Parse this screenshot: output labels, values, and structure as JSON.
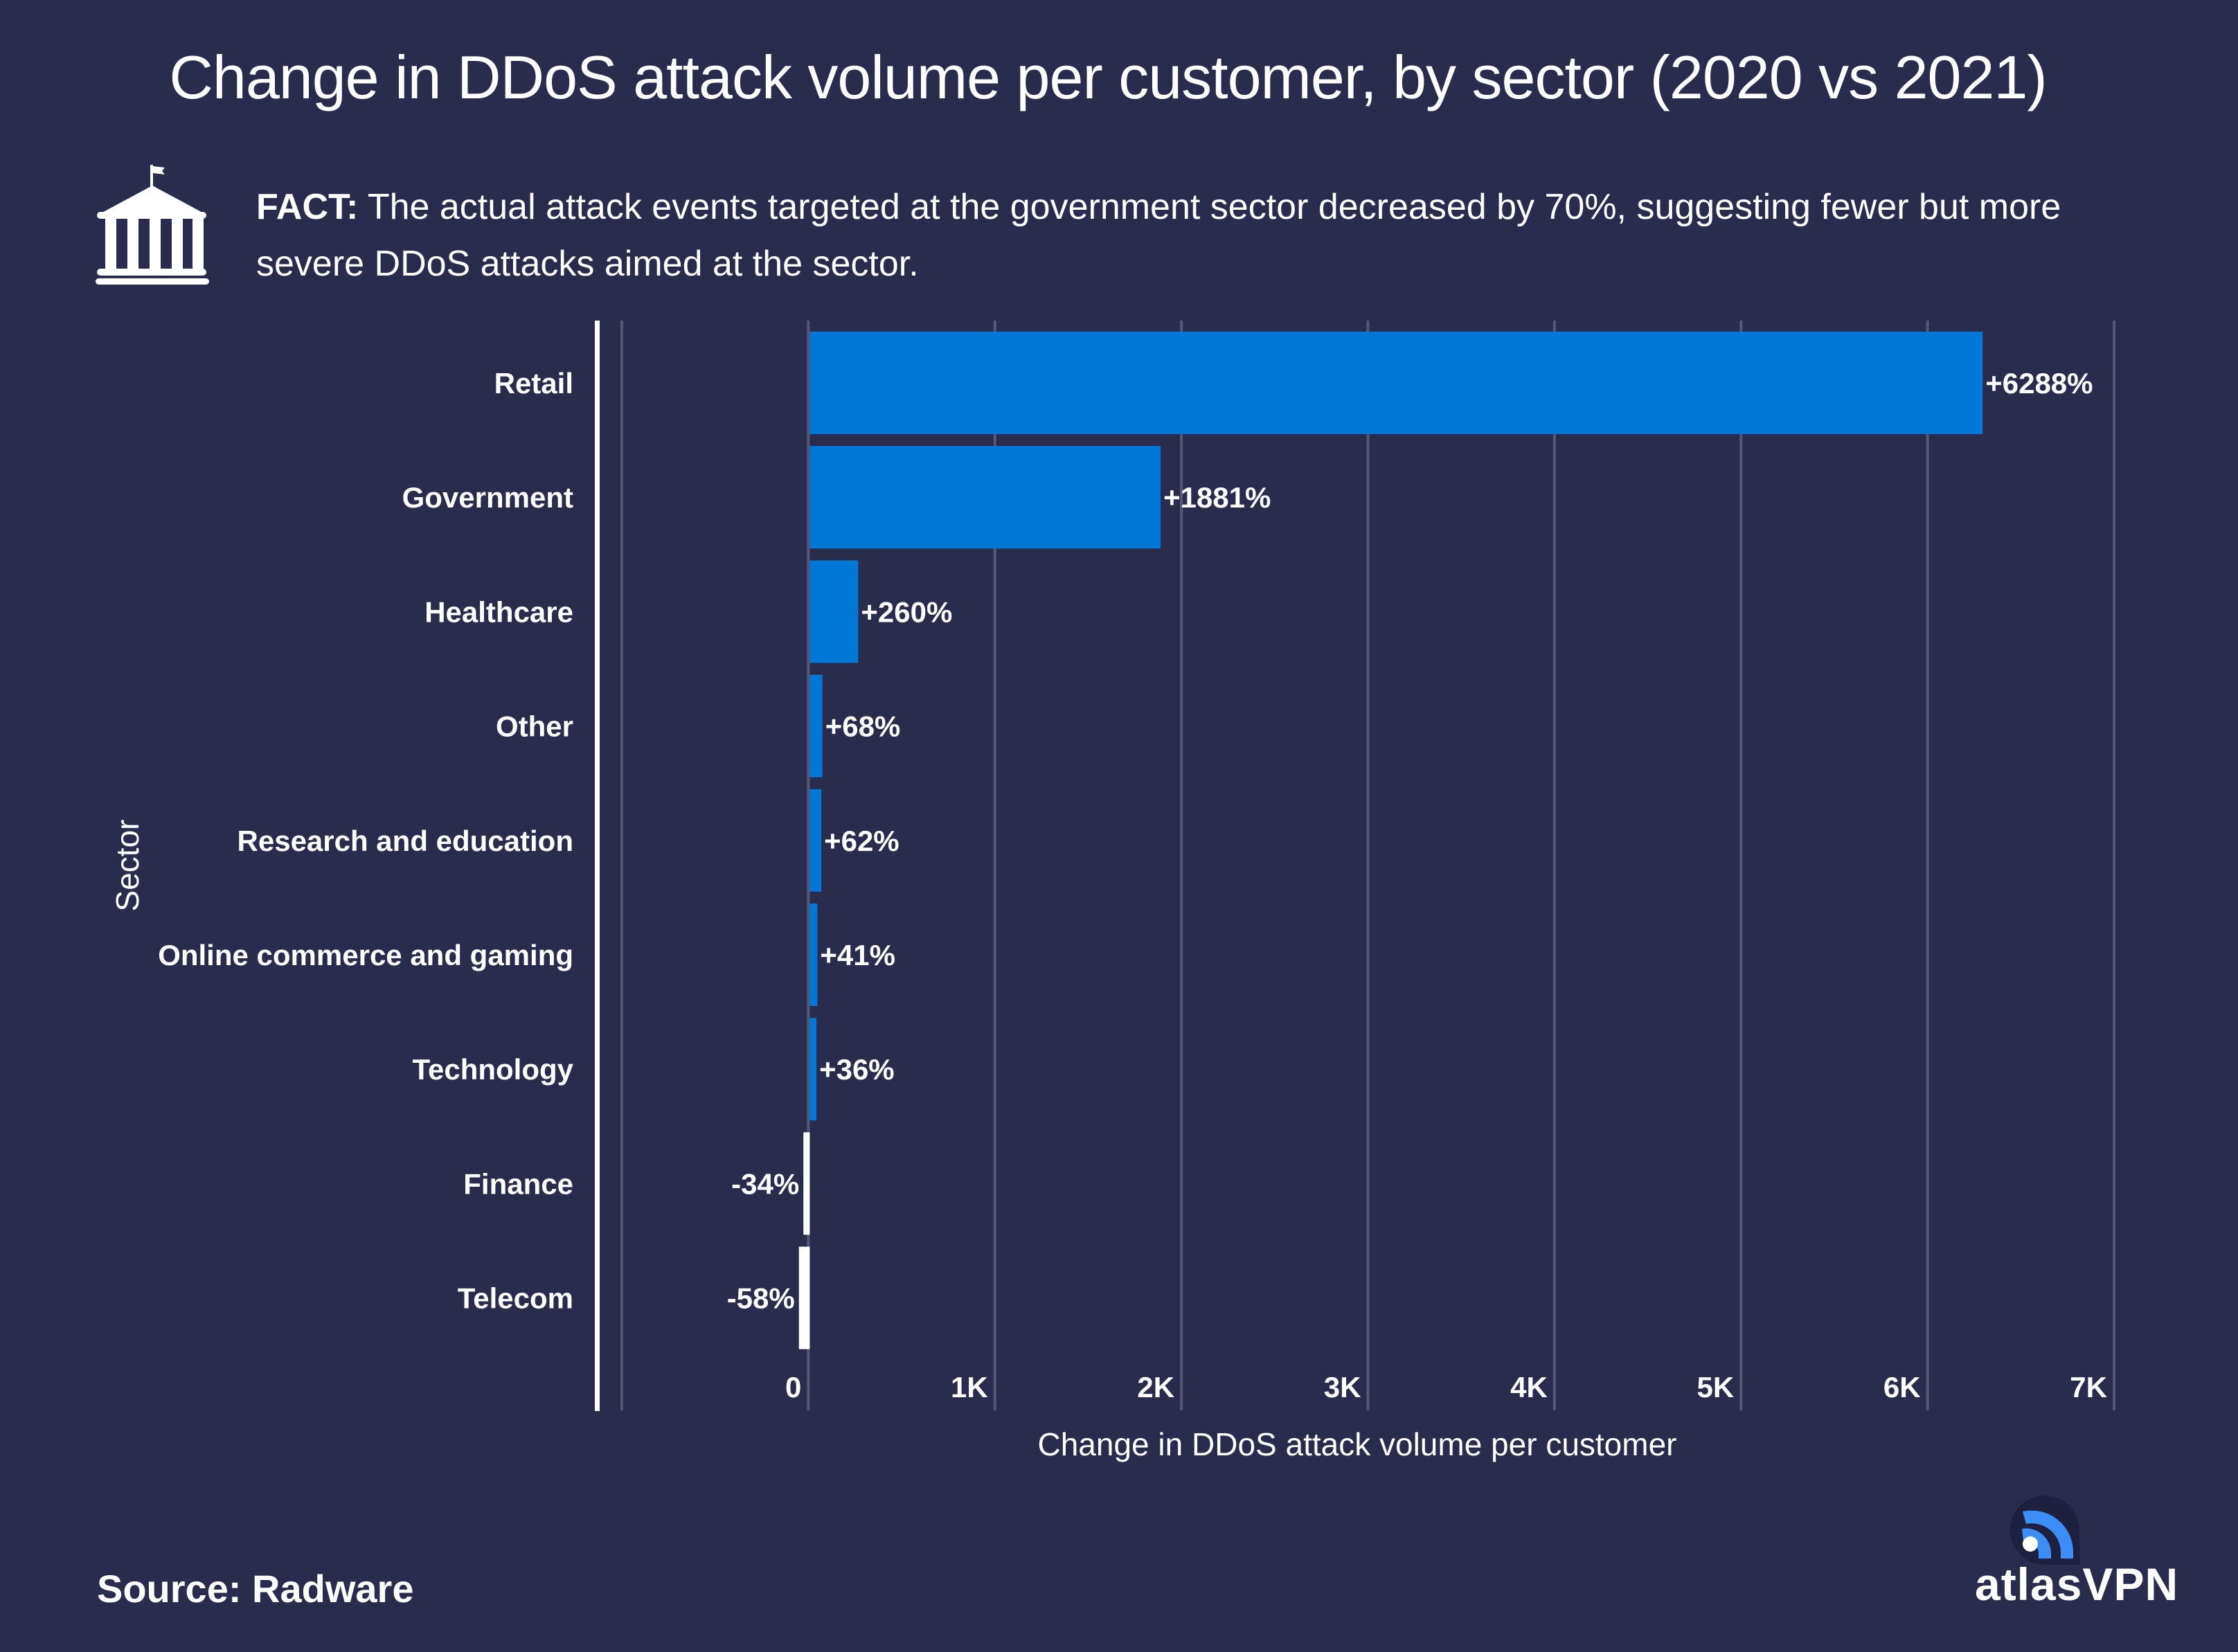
{
  "header": {
    "title": "Change in DDoS attack volume per customer, by sector (2020 vs 2021)",
    "fact_icon": "government-building-icon",
    "fact_label": "FACT:",
    "fact_text": " The actual attack events targeted at the government sector decreased by 70%, suggesting fewer but more severe DDoS attacks aimed at the sector."
  },
  "footer": {
    "source": "Source: Radware",
    "brand_icon": "atlasvpn-logo-icon",
    "brand_name": "atlasVPN"
  },
  "colors": {
    "background": "#2a2c4e",
    "positive_bar": "#0078d7",
    "negative_bar": "#ffffff",
    "gridline": "#555775",
    "text": "#ffffff",
    "logo_blue": "#3a8ef6"
  },
  "chart_data": {
    "type": "bar",
    "orientation": "horizontal",
    "title": "Change in DDoS attack volume per customer, by sector (2020 vs 2021)",
    "xlabel": "Change in DDoS attack volume per customer",
    "ylabel": "Sector",
    "categories": [
      "Retail",
      "Government",
      "Healthcare",
      "Other",
      "Research and education",
      "Online commerce and gaming",
      "Technology",
      "Finance",
      "Telecom"
    ],
    "values": [
      6288,
      1881,
      260,
      68,
      62,
      41,
      36,
      -34,
      -58
    ],
    "value_labels": [
      "+6288%",
      "+1881%",
      "+260%",
      "+68%",
      "+62%",
      "+41%",
      "+36%",
      "-34%",
      "-58%"
    ],
    "unit": "%",
    "xlim": [
      -1000,
      7000
    ],
    "x_ticks": [
      0,
      1000,
      2000,
      3000,
      4000,
      5000,
      6000,
      7000
    ],
    "x_tick_labels": [
      "0",
      "1K",
      "2K",
      "3K",
      "4K",
      "5K",
      "6K",
      "7K"
    ],
    "grid": true,
    "legend": "none"
  }
}
